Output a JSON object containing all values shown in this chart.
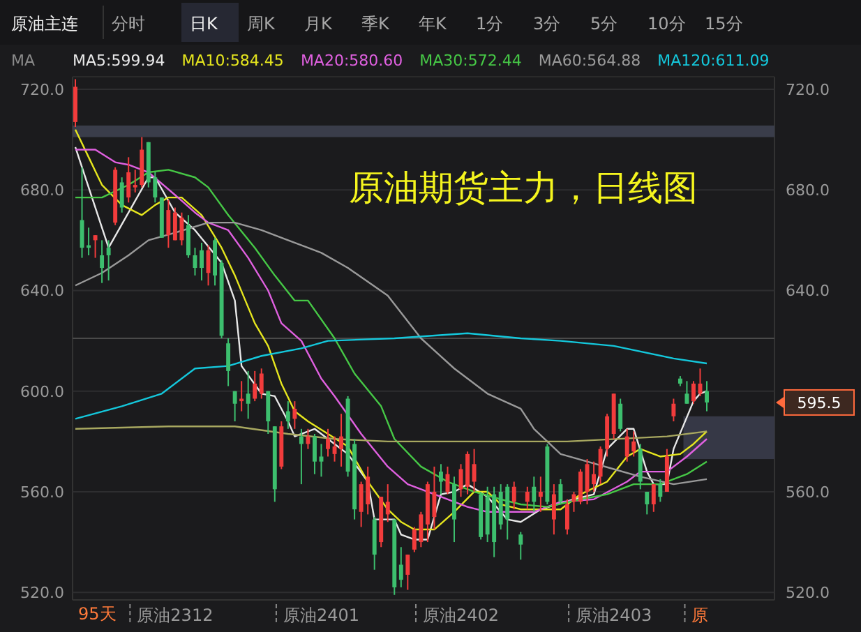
{
  "chart_data": {
    "type": "candlestick",
    "title": "原油期货主力，日线图",
    "categories": [
      null,
      null,
      null,
      null,
      null,
      null,
      null,
      null,
      null,
      null,
      null,
      null,
      null,
      null,
      null,
      "原油2312",
      null,
      null,
      null,
      null,
      null,
      null,
      null,
      null,
      null,
      null,
      null,
      null,
      null,
      null,
      null,
      null,
      null,
      null,
      null,
      null,
      null,
      "原油2401",
      null,
      null,
      null,
      null,
      null,
      null,
      null,
      null,
      null,
      null,
      null,
      null,
      null,
      null,
      null,
      null,
      null,
      null,
      null,
      null,
      "原油2402",
      null,
      null,
      null,
      null,
      null,
      null,
      null,
      null,
      null,
      null,
      null,
      null,
      null,
      null,
      null,
      null,
      null,
      null,
      null,
      null,
      null,
      null,
      "原油2403",
      null,
      null,
      null,
      null,
      null,
      null,
      null,
      null,
      null,
      null,
      null,
      null,
      "原",
      null
    ],
    "ohlc": [
      [
        707,
        724,
        705,
        721
      ],
      [
        668,
        689,
        653,
        657
      ],
      [
        658,
        665,
        654,
        657
      ],
      [
        660,
        662,
        653,
        662
      ],
      [
        654,
        660,
        643,
        649
      ],
      [
        657,
        660,
        644,
        654
      ],
      [
        667,
        689,
        666,
        688
      ],
      [
        683,
        685,
        671,
        673
      ],
      [
        677,
        693,
        675,
        687
      ],
      [
        681,
        688,
        679,
        682
      ],
      [
        682,
        701,
        681,
        696
      ],
      [
        699,
        699,
        681,
        683
      ],
      [
        685,
        687,
        675,
        677
      ],
      [
        677,
        677,
        661,
        661
      ],
      [
        662,
        676,
        657,
        672
      ],
      [
        660,
        673,
        660,
        671
      ],
      [
        660,
        671,
        658,
        669
      ],
      [
        666,
        670,
        653,
        654
      ],
      [
        654,
        657,
        646,
        649
      ],
      [
        656,
        659,
        644,
        649
      ],
      [
        647,
        658,
        642,
        656
      ],
      [
        660,
        661,
        642,
        646
      ],
      [
        651,
        652,
        621,
        622
      ],
      [
        619,
        621,
        602,
        608
      ],
      [
        600,
        600,
        588,
        595
      ],
      [
        596,
        604,
        592,
        597
      ],
      [
        599,
        608,
        589,
        595
      ],
      [
        597,
        608,
        596,
        603
      ],
      [
        599,
        609,
        597,
        607
      ],
      [
        600,
        600,
        583,
        588
      ],
      [
        586,
        586,
        556,
        561
      ],
      [
        570,
        588,
        569,
        586
      ],
      [
        592,
        596,
        585,
        588
      ],
      [
        589,
        596,
        585,
        593
      ],
      [
        582,
        585,
        563,
        579
      ],
      [
        579,
        585,
        577,
        582
      ],
      [
        582,
        583,
        567,
        572
      ],
      [
        574,
        579,
        566,
        572
      ],
      [
        577,
        585,
        574,
        581
      ],
      [
        575,
        582,
        572,
        578
      ],
      [
        577,
        591,
        570,
        582
      ],
      [
        597,
        598,
        566,
        568
      ],
      [
        579,
        581,
        549,
        553
      ],
      [
        552,
        564,
        546,
        563
      ],
      [
        555,
        570,
        551,
        566
      ],
      [
        549,
        550,
        529,
        535
      ],
      [
        540,
        558,
        538,
        558
      ],
      [
        551,
        563,
        548,
        556
      ],
      [
        549,
        549,
        519,
        522
      ],
      [
        531,
        538,
        522,
        525
      ],
      [
        527,
        535,
        521,
        535
      ],
      [
        537,
        546,
        536,
        545
      ],
      [
        540,
        552,
        538,
        551
      ],
      [
        547,
        564,
        540,
        563
      ],
      [
        550,
        570,
        545,
        560
      ],
      [
        568,
        571,
        559,
        564
      ],
      [
        560,
        570,
        559,
        567
      ],
      [
        563,
        566,
        540,
        549
      ],
      [
        561,
        571,
        558,
        569
      ],
      [
        562,
        576,
        559,
        575
      ],
      [
        564,
        577,
        560,
        571
      ],
      [
        559,
        560,
        541,
        542
      ],
      [
        558,
        562,
        540,
        543
      ],
      [
        559,
        562,
        534,
        540
      ],
      [
        560,
        563,
        545,
        547
      ],
      [
        562,
        563,
        541,
        549
      ],
      [
        556,
        564,
        553,
        562
      ],
      [
        543,
        544,
        533,
        539
      ],
      [
        556,
        562,
        553,
        560
      ],
      [
        562,
        566,
        552,
        556
      ],
      [
        558,
        566,
        552,
        560
      ],
      [
        578,
        579,
        555,
        556
      ],
      [
        549,
        563,
        543,
        559
      ],
      [
        563,
        565,
        555,
        556
      ],
      [
        545,
        557,
        543,
        555
      ],
      [
        556,
        560,
        552,
        559
      ],
      [
        556,
        569,
        555,
        568
      ],
      [
        560,
        573,
        555,
        571
      ],
      [
        563,
        572,
        560,
        567
      ],
      [
        566,
        578,
        563,
        577
      ],
      [
        577,
        591,
        574,
        590
      ],
      [
        583,
        599,
        581,
        599
      ],
      [
        595,
        597,
        584,
        585
      ],
      [
        574,
        585,
        572,
        582
      ],
      [
        576,
        584,
        574,
        580
      ],
      [
        577,
        579,
        561,
        564
      ],
      [
        560,
        560,
        551,
        555
      ],
      [
        555,
        563,
        552,
        563
      ],
      [
        563,
        565,
        556,
        558
      ],
      [
        560,
        577,
        560,
        574
      ],
      [
        590,
        597,
        588,
        595
      ],
      [
        605,
        606,
        602,
        603
      ],
      [
        599,
        604,
        595,
        595
      ],
      [
        596,
        604,
        595,
        603
      ],
      [
        599,
        609,
        598,
        603
      ],
      [
        600,
        604,
        592,
        595.5
      ]
    ],
    "series": [
      {
        "type": "line",
        "name": "MA5:599.94",
        "color": "#e8e8e8",
        "values": [
          697,
          null,
          null,
          null,
          null,
          657,
          null,
          null,
          null,
          null,
          null,
          685,
          685,
          null,
          null,
          671,
          null,
          null,
          664,
          null,
          null,
          null,
          651,
          null,
          636,
          610,
          null,
          null,
          599,
          null,
          598,
          null,
          588,
          582,
          null,
          null,
          585,
          null,
          null,
          579,
          null,
          575,
          null,
          null,
          564,
          549,
          null,
          null,
          549,
          543,
          null,
          541,
          null,
          541,
          null,
          559,
          null,
          560,
          null,
          563,
          null,
          null,
          558,
          null,
          null,
          549,
          null,
          548,
          null,
          null,
          553,
          null,
          null,
          null,
          null,
          557,
          null,
          null,
          559,
          null,
          577,
          null,
          null,
          585,
          585,
          null,
          568,
          563,
          null,
          563,
          577,
          null,
          null,
          596,
          599,
          600
        ]
      },
      {
        "type": "line",
        "name": "MA10:584.45",
        "color": "#e6e61e",
        "values": [
          704,
          null,
          693,
          null,
          682,
          null,
          null,
          674,
          null,
          null,
          670,
          null,
          674,
          null,
          677,
          null,
          677,
          null,
          null,
          670,
          null,
          null,
          657,
          null,
          646,
          null,
          null,
          627,
          null,
          618,
          null,
          603,
          null,
          592,
          null,
          588,
          null,
          null,
          583,
          null,
          null,
          578,
          null,
          null,
          564,
          null,
          null,
          553,
          null,
          548,
          null,
          545,
          null,
          null,
          545,
          null,
          null,
          552,
          null,
          null,
          560,
          null,
          560,
          null,
          555,
          null,
          null,
          553,
          null,
          553,
          null,
          null,
          null,
          553,
          null,
          null,
          559,
          null,
          null,
          null,
          564,
          null,
          null,
          574,
          null,
          577,
          null,
          null,
          574,
          null,
          null,
          575,
          null,
          579,
          null,
          584
        ]
      },
      {
        "type": "line",
        "name": "MA20:580.60",
        "color": "#e060e0",
        "values": [
          696,
          null,
          null,
          696,
          null,
          null,
          691,
          null,
          690,
          null,
          null,
          687,
          null,
          null,
          null,
          678,
          null,
          null,
          671,
          null,
          667,
          null,
          null,
          664,
          null,
          null,
          653,
          null,
          null,
          640,
          null,
          627,
          null,
          null,
          620,
          null,
          null,
          605,
          null,
          598,
          null,
          null,
          null,
          583,
          null,
          null,
          null,
          570,
          null,
          null,
          563,
          null,
          null,
          null,
          null,
          558,
          null,
          null,
          null,
          554,
          null,
          null,
          552,
          null,
          null,
          null,
          null,
          552,
          null,
          552,
          null,
          null,
          null,
          556,
          null,
          null,
          null,
          null,
          557,
          null,
          null,
          null,
          null,
          564,
          null,
          568,
          null,
          null,
          null,
          568,
          null,
          null,
          574,
          null,
          null,
          581
        ]
      },
      {
        "type": "line",
        "name": "MA30:572.44",
        "color": "#46c846",
        "values": [
          677,
          null,
          null,
          null,
          677,
          null,
          null,
          null,
          682,
          null,
          null,
          687,
          null,
          null,
          688,
          null,
          null,
          null,
          685,
          null,
          681,
          null,
          null,
          670,
          null,
          null,
          null,
          657,
          null,
          null,
          646,
          null,
          null,
          636,
          null,
          636,
          null,
          null,
          null,
          621,
          null,
          null,
          607,
          null,
          null,
          null,
          594,
          null,
          581,
          null,
          null,
          null,
          570,
          null,
          null,
          null,
          564,
          null,
          null,
          null,
          560,
          null,
          null,
          null,
          557,
          null,
          null,
          555,
          null,
          null,
          null,
          554,
          null,
          null,
          null,
          null,
          557,
          null,
          null,
          null,
          559,
          null,
          null,
          null,
          563,
          null,
          null,
          null,
          563,
          null,
          null,
          null,
          567,
          null,
          null,
          572
        ]
      },
      {
        "type": "line",
        "name": "MA60:564.88",
        "color": "#9a9a9a",
        "values": [
          642,
          null,
          null,
          null,
          647,
          null,
          null,
          null,
          654,
          null,
          null,
          660,
          null,
          null,
          null,
          663,
          null,
          null,
          null,
          null,
          667,
          null,
          null,
          null,
          667,
          null,
          null,
          null,
          664,
          null,
          null,
          null,
          660,
          null,
          null,
          657,
          null,
          655,
          null,
          null,
          null,
          649,
          null,
          null,
          null,
          null,
          null,
          638,
          null,
          null,
          null,
          null,
          621,
          null,
          null,
          null,
          null,
          609,
          null,
          null,
          null,
          null,
          599,
          null,
          null,
          null,
          null,
          593,
          null,
          585,
          null,
          null,
          null,
          575,
          null,
          null,
          null,
          572,
          null,
          null,
          null,
          569,
          null,
          null,
          null,
          566,
          null,
          null,
          null,
          null,
          563,
          null,
          null,
          null,
          null,
          565
        ]
      },
      {
        "type": "line",
        "name": "MA120:611.09",
        "color": "#14c8dc",
        "values": [
          589,
          null,
          null,
          null,
          null,
          null,
          null,
          594,
          null,
          null,
          null,
          null,
          null,
          599,
          null,
          null,
          null,
          null,
          609,
          null,
          null,
          null,
          null,
          610,
          null,
          null,
          null,
          null,
          614,
          null,
          null,
          null,
          null,
          null,
          617,
          null,
          null,
          null,
          620,
          null,
          null,
          null,
          null,
          null,
          null,
          null,
          null,
          null,
          621,
          null,
          null,
          null,
          null,
          null,
          null,
          null,
          null,
          null,
          null,
          623,
          null,
          null,
          null,
          null,
          null,
          null,
          null,
          621,
          null,
          null,
          null,
          null,
          null,
          620,
          null,
          null,
          null,
          null,
          null,
          null,
          null,
          618,
          null,
          null,
          null,
          null,
          null,
          null,
          null,
          null,
          613,
          null,
          null,
          null,
          null,
          611
        ]
      },
      {
        "type": "line",
        "color": "#a8a860",
        "values": [
          585,
          null,
          null,
          null,
          null,
          null,
          null,
          null,
          null,
          null,
          null,
          null,
          null,
          null,
          586,
          null,
          null,
          null,
          null,
          null,
          null,
          null,
          null,
          null,
          586,
          null,
          null,
          null,
          null,
          null,
          null,
          null,
          583,
          null,
          null,
          null,
          null,
          null,
          null,
          581,
          null,
          null,
          null,
          null,
          null,
          null,
          null,
          580,
          null,
          null,
          null,
          null,
          null,
          null,
          null,
          null,
          null,
          null,
          null,
          580,
          null,
          null,
          null,
          null,
          null,
          null,
          null,
          null,
          null,
          null,
          null,
          null,
          null,
          null,
          580,
          null,
          null,
          null,
          null,
          null,
          null,
          null,
          null,
          null,
          null,
          null,
          null,
          null,
          null,
          582,
          null,
          null,
          null,
          null,
          null,
          584
        ]
      }
    ],
    "ylim": [
      517,
      725
    ],
    "yticks": [
      {
        "value": 520,
        "label": "520.0"
      },
      {
        "value": 560,
        "label": "560.0"
      },
      {
        "value": 600,
        "label": "600.0"
      },
      {
        "value": 640,
        "label": "640.0"
      },
      {
        "value": 680,
        "label": "680.0"
      },
      {
        "value": 720,
        "label": "720.0"
      }
    ],
    "y2lim": [
      517,
      725
    ],
    "y2ticks": [
      {
        "value": 520,
        "label": "520.0"
      },
      {
        "value": 560,
        "label": "560.0"
      },
      {
        "value": 600,
        "label": null
      },
      {
        "value": 640,
        "label": "640.0"
      },
      {
        "value": 680,
        "label": "680.0"
      },
      {
        "value": 720,
        "label": "720.0"
      }
    ],
    "grid": "y",
    "legend": "top left",
    "ref_lines": [
      {
        "axis": "y",
        "value": 621,
        "color": "#4a4a4a"
      }
    ],
    "bands": [
      {
        "axis": "y",
        "from": 701,
        "to": 705.6,
        "color": "#3a3d4a"
      },
      {
        "axis": "y",
        "from": 573,
        "to": 590,
        "color": "#363846"
      }
    ],
    "annotations": [
      "原油主连",
      "分时",
      "日K",
      "周K",
      "月K",
      "季K",
      "年K",
      "1分",
      "3分",
      "5分",
      "10分",
      "15分",
      "MA",
      "95天",
      "595.5"
    ]
  }
}
